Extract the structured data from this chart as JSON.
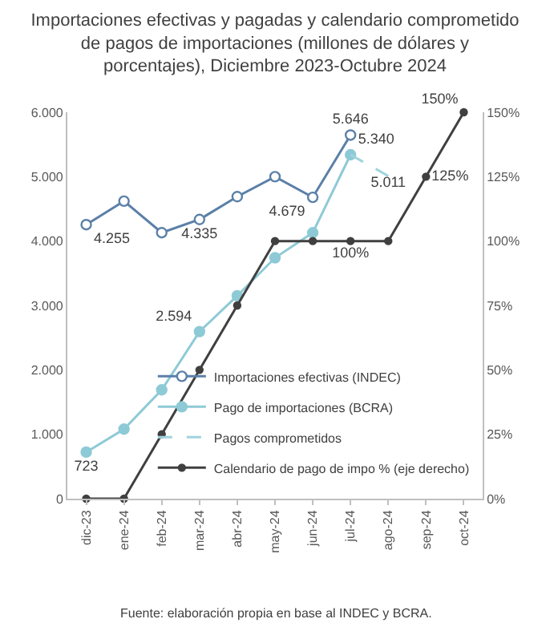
{
  "chart_data": {
    "type": "line",
    "title": "Importaciones efectivas y pagadas y calendario comprometido de pagos de importaciones (millones de dólares y porcentajes), Diciembre 2023-Octubre 2024",
    "categories": [
      "dic-23",
      "ene-24",
      "feb-24",
      "mar-24",
      "abr-24",
      "may-24",
      "jun-24",
      "jul-24",
      "ago-24",
      "sep-24",
      "oct-24"
    ],
    "series": [
      {
        "name": "Importaciones efectivas (INDEC)",
        "color": "#5b80a8",
        "marker": "circle",
        "line_style": "solid",
        "values": [
          4255,
          4620,
          4130,
          4335,
          4690,
          5000,
          4679,
          5646,
          null,
          null,
          null
        ],
        "value_labels": [
          "4.255",
          null,
          null,
          "4.335",
          null,
          null,
          "4.679",
          "5.646",
          null,
          null,
          null
        ]
      },
      {
        "name": "Pago de importaciones (BCRA)",
        "color": "#8ecad6",
        "marker": "circle",
        "line_style": "solid",
        "values": [
          723,
          1080,
          1690,
          2594,
          3150,
          3740,
          4130,
          5340,
          null,
          null,
          null
        ],
        "value_labels": [
          "723",
          null,
          null,
          "2.594",
          null,
          null,
          null,
          "5.340",
          null,
          null,
          null
        ]
      },
      {
        "name": "Pagos comprometidos",
        "color": "#9fd4de",
        "marker": "none",
        "line_style": "dashed",
        "values": [
          null,
          null,
          null,
          null,
          null,
          null,
          null,
          5340,
          5011,
          null,
          null
        ],
        "value_labels": [
          null,
          null,
          null,
          null,
          null,
          null,
          null,
          null,
          "5.011",
          null,
          null
        ]
      },
      {
        "name": "Calendario de pago de impo % (eje derecho)",
        "color": "#404040",
        "marker": "circle",
        "line_style": "solid",
        "axis": "y2",
        "values": [
          0,
          0,
          25,
          50,
          75,
          100,
          100,
          100,
          100,
          125,
          150
        ],
        "value_labels": [
          null,
          null,
          null,
          null,
          null,
          null,
          null,
          "100%",
          null,
          "125%",
          "150%"
        ]
      }
    ],
    "ylim": [
      0,
      6000
    ],
    "yticks": [
      {
        "value": 0,
        "label": "0"
      },
      {
        "value": 1000,
        "label": "1.000"
      },
      {
        "value": 2000,
        "label": "2.000"
      },
      {
        "value": 3000,
        "label": "3.000"
      },
      {
        "value": 4000,
        "label": "4.000"
      },
      {
        "value": 5000,
        "label": "5.000"
      },
      {
        "value": 6000,
        "label": "6.000"
      }
    ],
    "y2lim": [
      0,
      150
    ],
    "y2ticks": [
      {
        "value": 0,
        "label": "0%"
      },
      {
        "value": 25,
        "label": "25%"
      },
      {
        "value": 50,
        "label": "50%"
      },
      {
        "value": 75,
        "label": "75%"
      },
      {
        "value": 100,
        "label": "100%"
      },
      {
        "value": 125,
        "label": "125%"
      },
      {
        "value": 150,
        "label": "150%"
      }
    ],
    "legend": "bottom right",
    "annotations": [
      "Fuente: elaboración propia en base al INDEC y BCRA."
    ]
  }
}
